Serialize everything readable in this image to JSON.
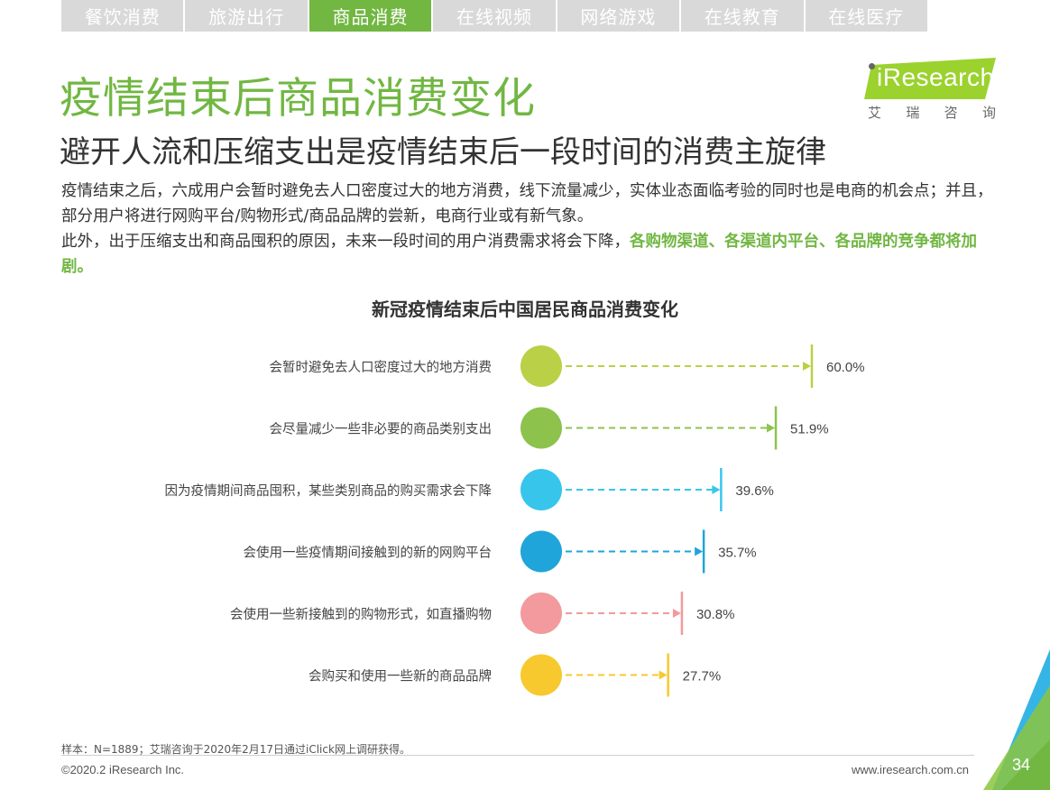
{
  "nav": {
    "tabs": [
      {
        "label": "餐饮消费",
        "active": false
      },
      {
        "label": "旅游出行",
        "active": false
      },
      {
        "label": "商品消费",
        "active": true
      },
      {
        "label": "在线视频",
        "active": false
      },
      {
        "label": "网络游戏",
        "active": false
      },
      {
        "label": "在线教育",
        "active": false
      },
      {
        "label": "在线医疗",
        "active": false
      }
    ]
  },
  "logo": {
    "brand": "Research",
    "sub": [
      "艾",
      "瑞",
      "咨",
      "询"
    ]
  },
  "header": {
    "title": "疫情结束后商品消费变化",
    "subtitle": "避开人流和压缩支出是疫情结束后一段时间的消费主旋律"
  },
  "body": {
    "p1": "疫情结束之后，六成用户会暂时避免去人口密度过大的地方消费，线下流量减少，实体业态面临考验的同时也是电商的机会点；并且，部分用户将进行网购平台/购物形式/商品品牌的尝新，电商行业或有新气象。",
    "p2_plain": "此外，出于压缩支出和商品囤积的原因，未来一段时间的用户消费需求将会下降，",
    "p2_highlight": "各购物渠道、各渠道内平台、各品牌的竞争都将加剧。"
  },
  "chart_data": {
    "type": "bar",
    "title": "新冠疫情结束后中国居民商品消费变化",
    "categories": [
      "会暂时避免去人口密度过大的地方消费",
      "会尽量减少一些非必要的商品类别支出",
      "因为疫情期间商品囤积，某些类别商品的购买需求会下降",
      "会使用一些疫情期间接触到的新的网购平台",
      "会使用一些新接触到的购物形式，如直播购物",
      "会购买和使用一些新的商品品牌"
    ],
    "values": [
      60.0,
      51.9,
      39.6,
      35.7,
      30.8,
      27.7
    ],
    "value_labels": [
      "60.0%",
      "51.9%",
      "39.6%",
      "35.7%",
      "30.8%",
      "27.7%"
    ],
    "colors": [
      "#bad046",
      "#8dc34d",
      "#38c5ec",
      "#1fa5d9",
      "#f29a9d",
      "#f7c92e"
    ],
    "unit": "%"
  },
  "footer": {
    "note": "样本：N=1889；艾瑞咨询于2020年2月17日通过iClick网上调研获得。",
    "copyright": "©2020.2 iResearch Inc.",
    "website": "www.iresearch.com.cn",
    "page": "34"
  },
  "colors": {
    "accent": "#71b742",
    "tab_inactive": "#d9d9d9",
    "corner_blue": "#35b5e5"
  }
}
